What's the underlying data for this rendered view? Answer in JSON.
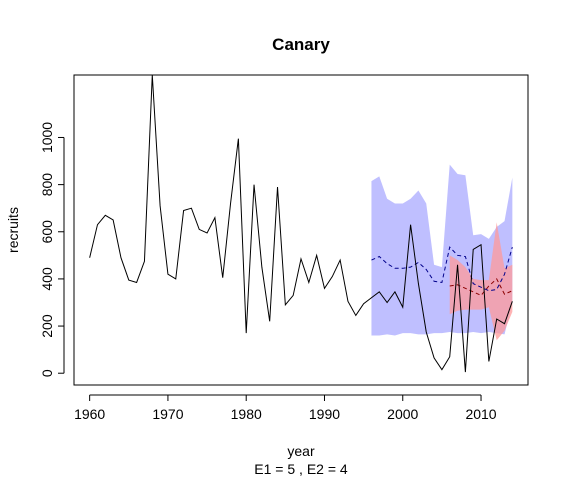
{
  "chart_data": {
    "type": "line",
    "title": "Canary",
    "xlabel": "year",
    "ylabel": "recruits",
    "subtitle": "E1 = 5 , E2 = 4",
    "xlim": [
      1958,
      2016
    ],
    "ylim": [
      -50,
      1265
    ],
    "x_ticks": [
      1960,
      1970,
      1980,
      1990,
      2000,
      2010
    ],
    "y_ticks": [
      0,
      200,
      400,
      600,
      800,
      1000
    ],
    "grid": false,
    "colors": {
      "observed": "#000000",
      "forecast_e1_band": "#aaaaff",
      "forecast_e1_mean": "#00008b",
      "forecast_e2_band": "#ff9999",
      "forecast_e2_mean": "#8b0000"
    },
    "series": [
      {
        "x": [
          1960,
          1961,
          1962,
          1963,
          1964,
          1965,
          1966,
          1967,
          1968,
          1969,
          1970,
          1971,
          1972,
          1973,
          1974,
          1975,
          1976,
          1977,
          1978,
          1979,
          1980,
          1981,
          1982,
          1983,
          1984,
          1985,
          1986,
          1987,
          1988,
          1989,
          1990,
          1991,
          1992,
          1993,
          1994,
          1995,
          1996,
          1997,
          1998,
          1999,
          2000,
          2001,
          2002,
          2003,
          2004,
          2005,
          2006,
          2007,
          2008,
          2009,
          2010,
          2011,
          2012,
          2013,
          2014
        ],
        "values": [
          490,
          630,
          670,
          650,
          490,
          395,
          385,
          475,
          1265,
          710,
          420,
          400,
          690,
          700,
          610,
          595,
          660,
          405,
          720,
          995,
          170,
          800,
          450,
          220,
          790,
          290,
          330,
          485,
          385,
          500,
          360,
          410,
          480,
          305,
          245,
          295,
          320,
          345,
          300,
          345,
          280,
          630,
          380,
          175,
          65,
          15,
          70,
          460,
          5,
          525,
          545,
          50,
          230,
          210,
          305
        ]
      },
      {
        "x": [
          1996,
          1997,
          1998,
          1999,
          2000,
          2001,
          2002,
          2003,
          2004,
          2005,
          2006,
          2007,
          2008,
          2009,
          2010,
          2011,
          2012,
          2013,
          2014
        ],
        "values": [
          480,
          495,
          465,
          445,
          445,
          450,
          470,
          440,
          390,
          385,
          535,
          500,
          495,
          380,
          365,
          350,
          355,
          420,
          535
        ],
        "lower": [
          160,
          160,
          165,
          160,
          170,
          170,
          165,
          165,
          170,
          170,
          175,
          170,
          170,
          175,
          170,
          175,
          170,
          165,
          300
        ],
        "upper": [
          815,
          835,
          740,
          720,
          720,
          740,
          775,
          720,
          460,
          450,
          885,
          845,
          840,
          585,
          590,
          570,
          620,
          645,
          830
        ]
      },
      {
        "x": [
          2006,
          2007,
          2008,
          2009,
          2010,
          2011,
          2012,
          2013,
          2014
        ],
        "values": [
          370,
          375,
          360,
          345,
          330,
          370,
          400,
          335,
          350
        ],
        "lower": [
          250,
          265,
          270,
          270,
          270,
          280,
          140,
          180,
          260
        ],
        "upper": [
          500,
          480,
          450,
          400,
          395,
          395,
          640,
          445,
          460
        ]
      }
    ]
  }
}
